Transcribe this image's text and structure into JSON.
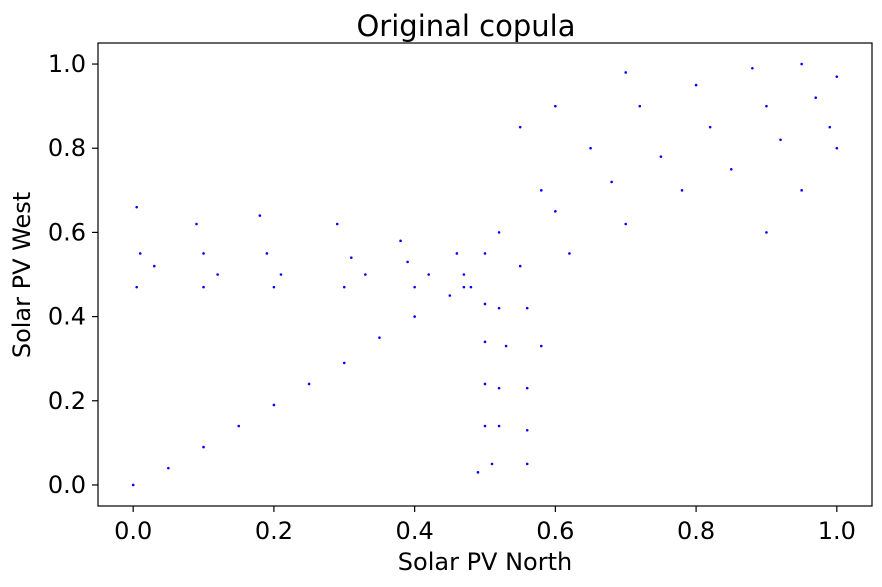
{
  "chart_data": {
    "type": "scatter",
    "title": "Original copula",
    "xlabel": "Solar PV North",
    "ylabel": "Solar PV West",
    "xlim": [
      -0.05,
      1.05
    ],
    "ylim": [
      -0.05,
      1.05
    ],
    "x_ticks": [
      0.0,
      0.2,
      0.4,
      0.6,
      0.8,
      1.0
    ],
    "y_ticks": [
      0.0,
      0.2,
      0.4,
      0.6,
      0.8,
      1.0
    ],
    "x_tick_labels": [
      "0.0",
      "0.2",
      "0.4",
      "0.6",
      "0.8",
      "1.0"
    ],
    "y_tick_labels": [
      "0.0",
      "0.2",
      "0.4",
      "0.6",
      "0.8",
      "1.0"
    ],
    "grid": false,
    "marker_color": "#0000ff",
    "series": [
      {
        "points": [
          [
            0.0,
            0.0
          ],
          [
            0.05,
            0.04
          ],
          [
            0.1,
            0.09
          ],
          [
            0.15,
            0.14
          ],
          [
            0.2,
            0.19
          ],
          [
            0.25,
            0.24
          ],
          [
            0.3,
            0.29
          ],
          [
            0.35,
            0.35
          ],
          [
            0.4,
            0.4
          ],
          [
            0.45,
            0.45
          ],
          [
            0.48,
            0.47
          ],
          [
            0.005,
            0.47
          ],
          [
            0.1,
            0.47
          ],
          [
            0.2,
            0.47
          ],
          [
            0.3,
            0.47
          ],
          [
            0.4,
            0.47
          ],
          [
            0.47,
            0.47
          ],
          [
            0.005,
            0.66
          ],
          [
            0.01,
            0.55
          ],
          [
            0.03,
            0.52
          ],
          [
            0.09,
            0.62
          ],
          [
            0.1,
            0.55
          ],
          [
            0.12,
            0.5
          ],
          [
            0.18,
            0.64
          ],
          [
            0.19,
            0.55
          ],
          [
            0.21,
            0.5
          ],
          [
            0.29,
            0.62
          ],
          [
            0.31,
            0.54
          ],
          [
            0.33,
            0.5
          ],
          [
            0.38,
            0.58
          ],
          [
            0.39,
            0.53
          ],
          [
            0.42,
            0.5
          ],
          [
            0.46,
            0.55
          ],
          [
            0.47,
            0.5
          ],
          [
            0.5,
            0.43
          ],
          [
            0.52,
            0.42
          ],
          [
            0.56,
            0.42
          ],
          [
            0.5,
            0.34
          ],
          [
            0.53,
            0.33
          ],
          [
            0.58,
            0.33
          ],
          [
            0.5,
            0.24
          ],
          [
            0.52,
            0.23
          ],
          [
            0.56,
            0.23
          ],
          [
            0.5,
            0.14
          ],
          [
            0.52,
            0.14
          ],
          [
            0.56,
            0.13
          ],
          [
            0.49,
            0.03
          ],
          [
            0.51,
            0.05
          ],
          [
            0.56,
            0.05
          ],
          [
            0.5,
            0.55
          ],
          [
            0.52,
            0.6
          ],
          [
            0.55,
            0.52
          ],
          [
            0.58,
            0.7
          ],
          [
            0.6,
            0.65
          ],
          [
            0.62,
            0.55
          ],
          [
            0.65,
            0.8
          ],
          [
            0.68,
            0.72
          ],
          [
            0.7,
            0.62
          ],
          [
            0.72,
            0.9
          ],
          [
            0.75,
            0.78
          ],
          [
            0.78,
            0.7
          ],
          [
            0.8,
            0.95
          ],
          [
            0.82,
            0.85
          ],
          [
            0.85,
            0.75
          ],
          [
            0.88,
            0.99
          ],
          [
            0.9,
            0.9
          ],
          [
            0.92,
            0.82
          ],
          [
            0.95,
            1.0
          ],
          [
            0.97,
            0.92
          ],
          [
            0.99,
            0.85
          ],
          [
            1.0,
            0.97
          ],
          [
            1.0,
            0.8
          ],
          [
            0.55,
            0.85
          ],
          [
            0.6,
            0.9
          ],
          [
            0.7,
            0.98
          ],
          [
            0.9,
            0.6
          ],
          [
            0.95,
            0.7
          ]
        ]
      }
    ]
  }
}
